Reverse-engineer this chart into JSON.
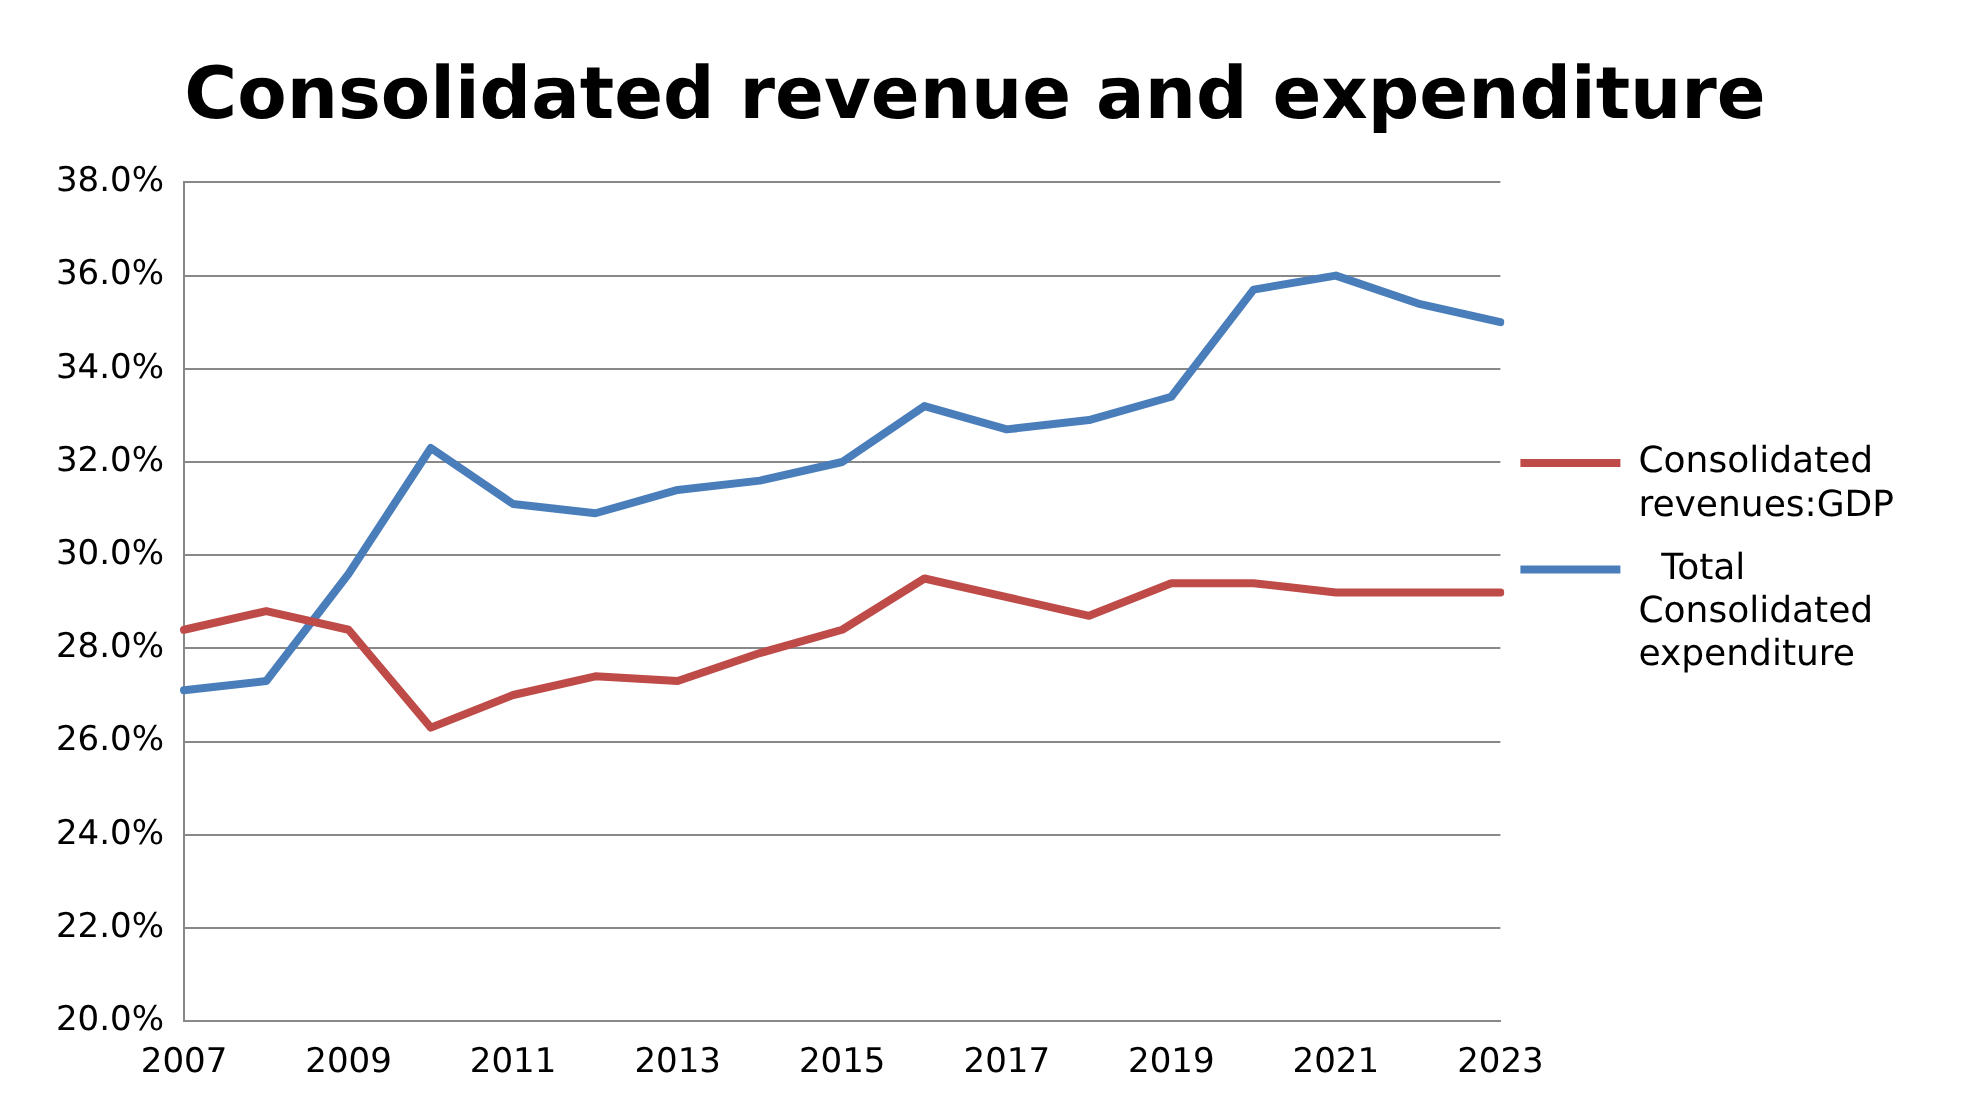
{
  "chart_data": {
    "type": "line",
    "title": "Consolidated revenue and expenditure",
    "categories": [
      "2007",
      null,
      "2009",
      null,
      "2011",
      null,
      "2013",
      null,
      "2015",
      null,
      "2017",
      null,
      "2019",
      null,
      "2021",
      null,
      "2023"
    ],
    "series": [
      {
        "name": "Consolidated revenues:GDP",
        "color": "#be4b48",
        "values": [
          28.4,
          28.8,
          28.4,
          26.3,
          27.0,
          27.4,
          27.3,
          27.9,
          28.4,
          29.5,
          29.1,
          28.7,
          29.4,
          29.4,
          29.2,
          29.2,
          29.2
        ]
      },
      {
        "name": " Total Consolidated expenditure",
        "color": "#4a7ebb",
        "values": [
          27.1,
          27.3,
          29.6,
          32.3,
          31.1,
          30.9,
          31.4,
          31.6,
          32.0,
          33.2,
          32.7,
          32.9,
          33.4,
          35.7,
          36.0,
          35.4,
          35.0
        ]
      }
    ],
    "ylim": [
      20,
      38
    ],
    "yticks": [
      {
        "value": 20,
        "label": "20.0%"
      },
      {
        "value": 22,
        "label": "22.0%"
      },
      {
        "value": 24,
        "label": "24.0%"
      },
      {
        "value": 26,
        "label": "26.0%"
      },
      {
        "value": 28,
        "label": "28.0%"
      },
      {
        "value": 30,
        "label": "30.0%"
      },
      {
        "value": 32,
        "label": "32.0%"
      },
      {
        "value": 34,
        "label": "34.0%"
      },
      {
        "value": 36,
        "label": "36.0%"
      },
      {
        "value": 38,
        "label": "38.0%"
      }
    ],
    "grid": "y",
    "legend": "right",
    "marker": "none",
    "line_style": "solid"
  }
}
